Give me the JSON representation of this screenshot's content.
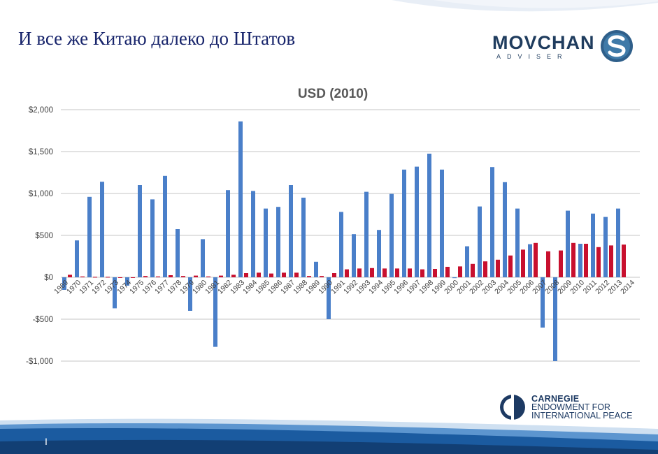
{
  "slide": {
    "title": "И все же Китаю далеко до Штатов",
    "page_marker": "I"
  },
  "logo": {
    "name": "MOVCHAN",
    "sub": "ADVISER",
    "mark": "S"
  },
  "carnegie": {
    "line1": "CARNEGIE",
    "line2": "ENDOWMENT FOR",
    "line3": "INTERNATIONAL PEACE"
  },
  "colors": {
    "title": "#17246b",
    "series_blue": "#4a7fc9",
    "series_red": "#c8102e",
    "grid": "#d9d9d9",
    "band": "#1b5ba0"
  },
  "chart_data": {
    "type": "bar",
    "title": "USD (2010)",
    "categories": [
      "1969",
      "1970",
      "1971",
      "1972",
      "1973",
      "1974",
      "1975",
      "1976",
      "1977",
      "1978",
      "1979",
      "1980",
      "1981",
      "1982",
      "1983",
      "1984",
      "1985",
      "1986",
      "1987",
      "1988",
      "1989",
      "1990",
      "1991",
      "1992",
      "1993",
      "1994",
      "1995",
      "1996",
      "1997",
      "1998",
      "1999",
      "2000",
      "2001",
      "2002",
      "2003",
      "2004",
      "2005",
      "2006",
      "2007",
      "2008",
      "2009",
      "2010",
      "2011",
      "2012",
      "2013",
      "2014"
    ],
    "series": [
      {
        "values": [
          -150,
          440,
          960,
          1140,
          -370,
          -100,
          1100,
          930,
          1210,
          575,
          -400,
          455,
          -830,
          1040,
          1860,
          1030,
          820,
          840,
          1100,
          950,
          185,
          -500,
          780,
          515,
          1020,
          565,
          995,
          1285,
          1320,
          1475,
          1285,
          -10,
          370,
          845,
          1315,
          1135,
          820,
          395,
          -600,
          -1000,
          795,
          400,
          760,
          720,
          820,
          null
        ]
      },
      {
        "values": [
          30,
          10,
          5,
          5,
          0,
          0,
          15,
          10,
          25,
          15,
          20,
          10,
          20,
          30,
          50,
          55,
          45,
          55,
          55,
          15,
          15,
          50,
          95,
          105,
          110,
          105,
          105,
          105,
          95,
          100,
          125,
          130,
          160,
          190,
          210,
          260,
          330,
          410,
          310,
          320,
          410,
          400,
          360,
          380,
          390,
          null
        ]
      }
    ],
    "yticks": [
      -1000,
      -500,
      0,
      500,
      1000,
      1500,
      2000
    ],
    "ytick_labels": [
      "-$1,000",
      "-$500",
      "$0",
      "$500",
      "$1,000",
      "$1,500",
      "$2,000"
    ],
    "ylim": [
      -1000,
      2000
    ],
    "xlabel": "",
    "ylabel": "",
    "grid": true,
    "legend": "none"
  }
}
